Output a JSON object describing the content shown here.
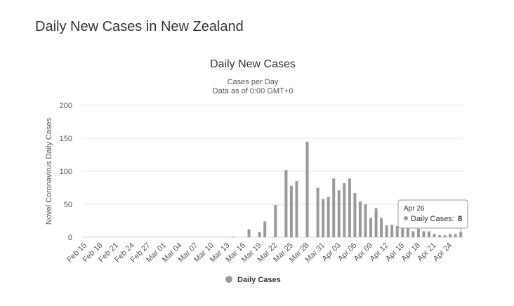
{
  "page_title": "Daily New Cases in New Zealand",
  "chart_data": {
    "type": "bar",
    "title": "Daily New Cases",
    "subtitle": [
      "Cases per Day",
      "Data as of 0:00 GMT+0"
    ],
    "y_label": "Novel Coronavirus Daily Cases",
    "categories": [
      "Feb 15",
      null,
      null,
      "Feb 18",
      null,
      null,
      "Feb 21",
      null,
      null,
      "Feb 24",
      null,
      null,
      "Feb 27",
      null,
      null,
      "Mar 01",
      null,
      null,
      "Mar 04",
      null,
      null,
      "Mar 07",
      null,
      null,
      "Mar 10",
      null,
      null,
      "Mar 13",
      null,
      null,
      "Mar 16",
      null,
      null,
      "Mar 19",
      null,
      null,
      "Mar 22",
      null,
      null,
      "Mar 25",
      null,
      null,
      "Mar 28",
      null,
      null,
      "Mar 31",
      null,
      null,
      "Apr 03",
      null,
      null,
      "Apr 06",
      null,
      null,
      "Apr 09",
      null,
      null,
      "Apr 12",
      null,
      null,
      "Apr 15",
      null,
      null,
      "Apr 18",
      null,
      null,
      "Apr 21",
      null,
      null,
      "Apr 24",
      null,
      null
    ],
    "series": [
      {
        "name": "Daily Cases",
        "color": "#999999",
        "values": [
          0,
          0,
          0,
          0,
          0,
          0,
          0,
          0,
          0,
          0,
          0,
          0,
          0,
          0,
          0,
          0,
          0,
          0,
          0,
          0,
          0,
          0,
          0,
          0,
          0,
          0,
          0,
          0,
          1,
          0,
          0,
          12,
          0,
          8,
          24,
          0,
          49,
          0,
          102,
          78,
          85,
          0,
          145,
          0,
          75,
          58,
          61,
          89,
          71,
          82,
          89,
          67,
          54,
          50,
          29,
          44,
          29,
          18,
          19,
          17,
          15,
          15,
          9,
          13,
          9,
          9,
          5,
          3,
          3,
          5,
          5,
          8
        ]
      }
    ],
    "ylim": [
      0,
      200
    ],
    "yticks": [
      0,
      50,
      100,
      150,
      200
    ],
    "grid": true,
    "tooltip": {
      "title": "Apr 26",
      "label": "Daily Cases:"
    }
  }
}
